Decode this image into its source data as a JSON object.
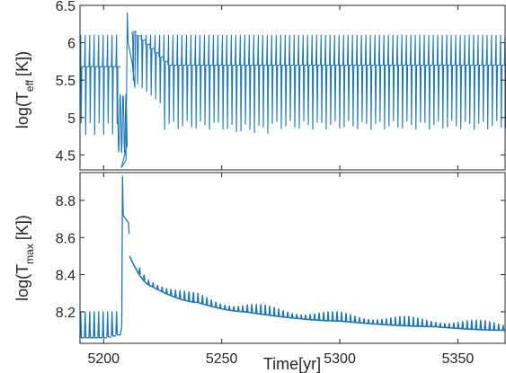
{
  "chart_data": [
    {
      "type": "line",
      "panel": "top",
      "ylabel_main": "log(T",
      "ylabel_sub": "eff",
      "ylabel_tail": "[K])",
      "xlim": [
        5190,
        5370
      ],
      "ylim": [
        4.3,
        6.5
      ],
      "yticks": [
        4.5,
        5,
        5.5,
        6,
        6.5
      ],
      "ytick_labels": [
        "4.5",
        "5",
        "5.5",
        "6",
        "6.5"
      ],
      "color": "#1f77b4",
      "series": [
        {
          "baseline": 5.68,
          "pulse_high": 6.1,
          "pulse_low_early": 4.85,
          "pulse_low_late": 4.9,
          "segments": [
            {
              "x_start": 5190,
              "x_end": 5207,
              "period": 1.9
            },
            {
              "x_start": 5212,
              "x_end": 5370,
              "period": 1.9
            }
          ],
          "outburst": {
            "x_start": 5206,
            "x_end": 5210,
            "min": 4.33,
            "peak_x": 5210,
            "peak": 6.4
          },
          "post_outburst_high": 6.15,
          "post_outburst_decay_to": 5.7
        }
      ]
    },
    {
      "type": "line",
      "panel": "bottom",
      "xlabel": "Time[yr]",
      "ylabel_main": "log(T",
      "ylabel_sub": "max",
      "ylabel_tail": "[K])",
      "xlim": [
        5190,
        5370
      ],
      "ylim": [
        8.03,
        8.95
      ],
      "xticks": [
        5200,
        5250,
        5300,
        5350
      ],
      "xtick_labels": [
        "5200",
        "5250",
        "5300",
        "5350"
      ],
      "yticks": [
        8.2,
        8.4,
        8.6,
        8.8
      ],
      "ytick_labels": [
        "8.2",
        "8.4",
        "8.6",
        "8.8"
      ],
      "color": "#1f77b4",
      "series": [
        {
          "pre_baseline": 8.06,
          "pre_spike_top": 8.2,
          "peak_x": 5208,
          "peak": 8.93,
          "plateau": 8.68,
          "decay_points": [
            [
              5211,
              8.5
            ],
            [
              5220,
              8.34
            ],
            [
              5240,
              8.25
            ],
            [
              5260,
              8.2
            ],
            [
              5300,
              8.15
            ],
            [
              5340,
              8.12
            ],
            [
              5370,
              8.1
            ]
          ],
          "spike_height": 0.05,
          "period": 1.9
        }
      ]
    }
  ]
}
